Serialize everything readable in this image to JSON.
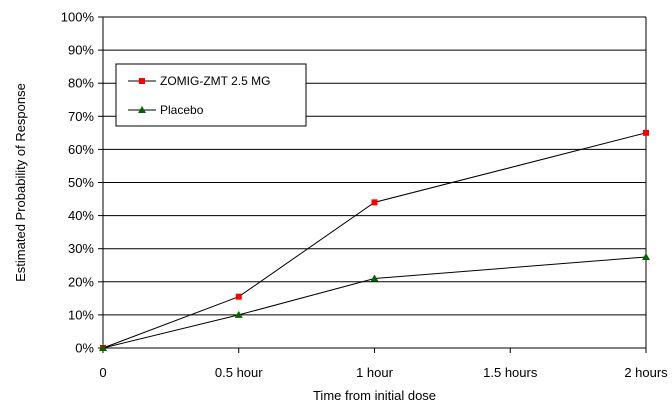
{
  "chart_data": {
    "type": "line",
    "title": "",
    "xlabel": "Time from initial dose",
    "ylabel": "Estimated Probability of Response",
    "x": [
      0,
      0.5,
      1,
      1.5,
      2
    ],
    "x_tick_labels": [
      "0",
      "0.5 hour",
      "1 hour",
      "1.5 hours",
      "2 hours"
    ],
    "xlim": [
      0,
      2
    ],
    "y_tick_labels": [
      "0%",
      "10%",
      "20%",
      "30%",
      "40%",
      "50%",
      "60%",
      "70%",
      "80%",
      "90%",
      "100%"
    ],
    "ylim": [
      0,
      100
    ],
    "y_unit": "%",
    "grid": "horizontal",
    "legend_position": "top-left",
    "series": [
      {
        "name": "ZOMIG-ZMT 2.5 MG",
        "color": "#ff0000",
        "marker": "square",
        "points": [
          {
            "x": 0,
            "y": 0
          },
          {
            "x": 0.5,
            "y": 15.5
          },
          {
            "x": 1,
            "y": 44
          },
          {
            "x": 2,
            "y": 65
          }
        ]
      },
      {
        "name": "Placebo",
        "color": "#006600",
        "marker": "triangle",
        "points": [
          {
            "x": 0,
            "y": 0
          },
          {
            "x": 0.5,
            "y": 10
          },
          {
            "x": 1,
            "y": 21
          },
          {
            "x": 2,
            "y": 27.5
          }
        ]
      }
    ]
  }
}
